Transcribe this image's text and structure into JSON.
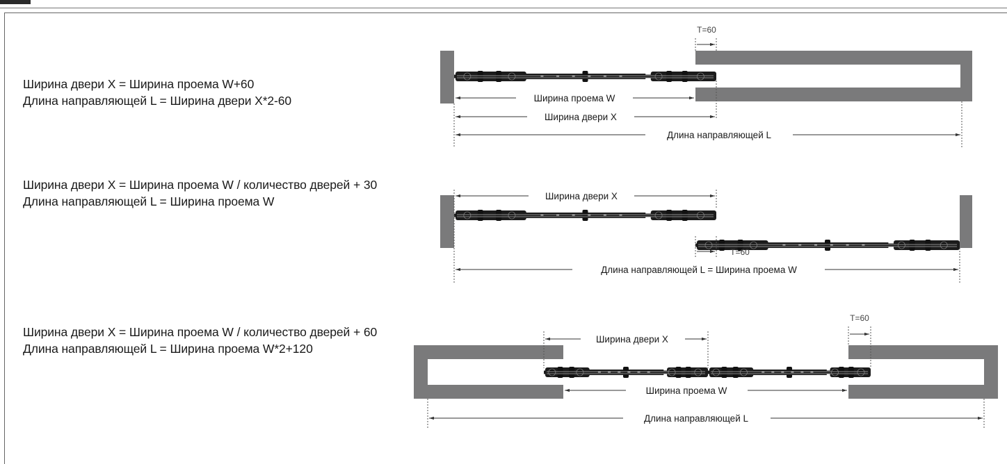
{
  "sections": [
    {
      "formula_door": "Ширина двери X = Ширина проема W+60",
      "formula_rail": "Длина направляющей L = Ширина двери X*2-60",
      "dim_opening": "Ширина проема W",
      "dim_door": "Ширина двери X",
      "dim_rail": "Длина направляющей L",
      "overlap": "T=60"
    },
    {
      "formula_door": "Ширина двери X = Ширина проема W / количество дверей + 30",
      "formula_rail": "Длина направляющей L = Ширина проема W",
      "dim_door": "Ширина двери X",
      "dim_rail": "Длина направляющей L = Ширина проема W",
      "overlap": "T=60"
    },
    {
      "formula_door": "Ширина двери X = Ширина проема W / количество дверей + 60",
      "formula_rail": "Длина направляющей L = Ширина проема W*2+120",
      "dim_door": "Ширина двери X",
      "dim_opening": "Ширина проема W",
      "dim_rail": "Длина направляющей L",
      "overlap": "T=60"
    }
  ],
  "colors": {
    "wall": "#7a7a7b",
    "panel": "#1c1c1c",
    "line": "#333333"
  }
}
